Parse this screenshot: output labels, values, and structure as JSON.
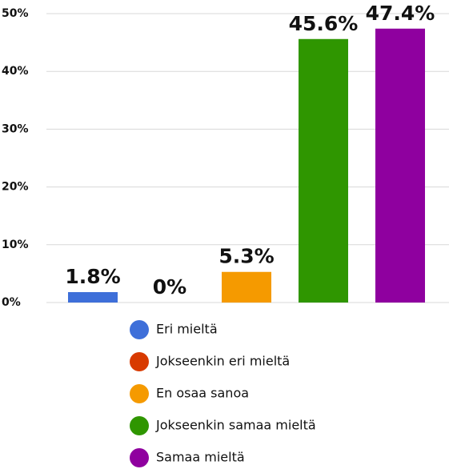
{
  "chart_data": {
    "type": "bar",
    "categories": [
      "Eri mieltä",
      "Jokseenkin eri mieltä",
      "En osaa sanoa",
      "Jokseenkin samaa mieltä",
      "Samaa mieltä"
    ],
    "values": [
      1.8,
      0,
      5.3,
      45.6,
      47.4
    ],
    "value_labels": [
      "1.8%",
      "0%",
      "5.3%",
      "45.6%",
      "47.4%"
    ],
    "colors": [
      "#3e6fd9",
      "#d83a00",
      "#f59a00",
      "#2f9600",
      "#8f009f"
    ],
    "ylim": [
      0,
      50
    ],
    "yticks": [
      {
        "value": 0,
        "label": "0%"
      },
      {
        "value": 10,
        "label": "10%"
      },
      {
        "value": 20,
        "label": "20%"
      },
      {
        "value": 30,
        "label": "30%"
      },
      {
        "value": 40,
        "label": "40%"
      },
      {
        "value": 50,
        "label": "50%"
      }
    ],
    "grid": true,
    "legend": "bottom"
  }
}
